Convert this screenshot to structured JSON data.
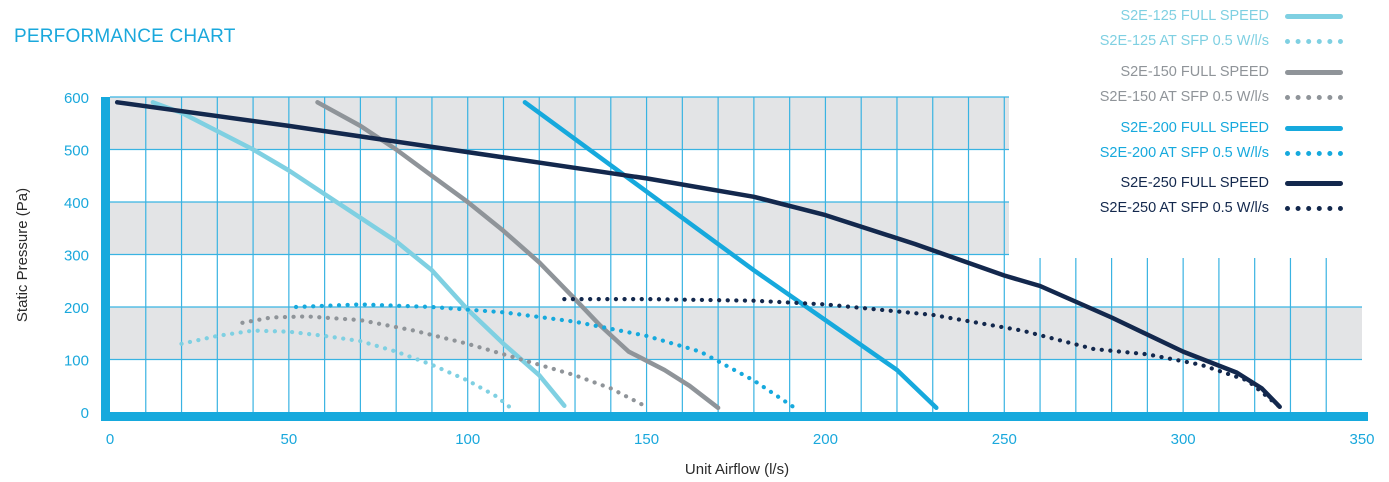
{
  "title": "PERFORMANCE CHART",
  "chart_data": {
    "type": "line",
    "xlabel": "Unit Airflow (l/s)",
    "ylabel": "Static Pressure (Pa)",
    "xlim": [
      0,
      350
    ],
    "ylim": [
      0,
      600
    ],
    "x_ticks": [
      "0",
      "50",
      "100",
      "150",
      "200",
      "250",
      "300",
      "350"
    ],
    "y_ticks": [
      "0",
      "100",
      "200",
      "300",
      "400",
      "500",
      "600"
    ],
    "grid": true,
    "legend_position": "top-right",
    "series": [
      {
        "name": "S2E-125 FULL SPEED",
        "color": "#7fd0e2",
        "style": "solid",
        "points": [
          [
            12,
            590
          ],
          [
            20,
            570
          ],
          [
            30,
            535
          ],
          [
            40,
            500
          ],
          [
            50,
            460
          ],
          [
            60,
            415
          ],
          [
            70,
            370
          ],
          [
            80,
            325
          ],
          [
            90,
            270
          ],
          [
            100,
            195
          ],
          [
            110,
            130
          ],
          [
            120,
            70
          ],
          [
            127,
            12
          ]
        ]
      },
      {
        "name": "S2E-125 AT SFP 0.5 W/l/s",
        "color": "#7fd0e2",
        "style": "dotted",
        "points": [
          [
            20,
            130
          ],
          [
            30,
            145
          ],
          [
            40,
            155
          ],
          [
            50,
            153
          ],
          [
            60,
            145
          ],
          [
            70,
            135
          ],
          [
            80,
            115
          ],
          [
            90,
            90
          ],
          [
            100,
            60
          ],
          [
            108,
            30
          ],
          [
            112,
            8
          ]
        ]
      },
      {
        "name": "S2E-150 FULL SPEED",
        "color": "#8f9499",
        "style": "solid",
        "points": [
          [
            58,
            590
          ],
          [
            70,
            545
          ],
          [
            80,
            500
          ],
          [
            90,
            450
          ],
          [
            100,
            400
          ],
          [
            110,
            345
          ],
          [
            120,
            285
          ],
          [
            130,
            215
          ],
          [
            137,
            165
          ],
          [
            145,
            115
          ],
          [
            155,
            80
          ],
          [
            162,
            50
          ],
          [
            170,
            8
          ]
        ]
      },
      {
        "name": "S2E-150 AT SFP 0.5 W/l/s",
        "color": "#8f9499",
        "style": "dotted",
        "points": [
          [
            37,
            170
          ],
          [
            45,
            180
          ],
          [
            55,
            182
          ],
          [
            70,
            175
          ],
          [
            85,
            155
          ],
          [
            100,
            130
          ],
          [
            115,
            100
          ],
          [
            130,
            70
          ],
          [
            140,
            45
          ],
          [
            150,
            10
          ]
        ]
      },
      {
        "name": "S2E-200 FULL SPEED",
        "color": "#16a9dd",
        "style": "solid",
        "points": [
          [
            116,
            590
          ],
          [
            140,
            470
          ],
          [
            160,
            370
          ],
          [
            180,
            270
          ],
          [
            200,
            175
          ],
          [
            220,
            80
          ],
          [
            231,
            8
          ]
        ]
      },
      {
        "name": "S2E-200 AT SFP 0.5 W/l/s",
        "color": "#16a9dd",
        "style": "dotted",
        "points": [
          [
            52,
            200
          ],
          [
            70,
            205
          ],
          [
            90,
            200
          ],
          [
            110,
            190
          ],
          [
            130,
            172
          ],
          [
            150,
            145
          ],
          [
            165,
            115
          ],
          [
            180,
            60
          ],
          [
            191,
            10
          ]
        ]
      },
      {
        "name": "S2E-250 FULL SPEED",
        "color": "#13284d",
        "style": "solid",
        "points": [
          [
            2,
            590
          ],
          [
            50,
            545
          ],
          [
            100,
            495
          ],
          [
            150,
            445
          ],
          [
            180,
            410
          ],
          [
            200,
            375
          ],
          [
            225,
            320
          ],
          [
            250,
            260
          ],
          [
            260,
            240
          ],
          [
            280,
            180
          ],
          [
            300,
            115
          ],
          [
            315,
            75
          ],
          [
            322,
            45
          ],
          [
            327,
            10
          ]
        ]
      },
      {
        "name": "S2E-250 AT SFP 0.5 W/l/s",
        "color": "#13284d",
        "style": "dotted",
        "points": [
          [
            127,
            215
          ],
          [
            150,
            215
          ],
          [
            180,
            212
          ],
          [
            200,
            205
          ],
          [
            230,
            185
          ],
          [
            255,
            155
          ],
          [
            275,
            120
          ],
          [
            290,
            110
          ],
          [
            305,
            90
          ],
          [
            318,
            60
          ],
          [
            327,
            10
          ]
        ]
      }
    ]
  }
}
